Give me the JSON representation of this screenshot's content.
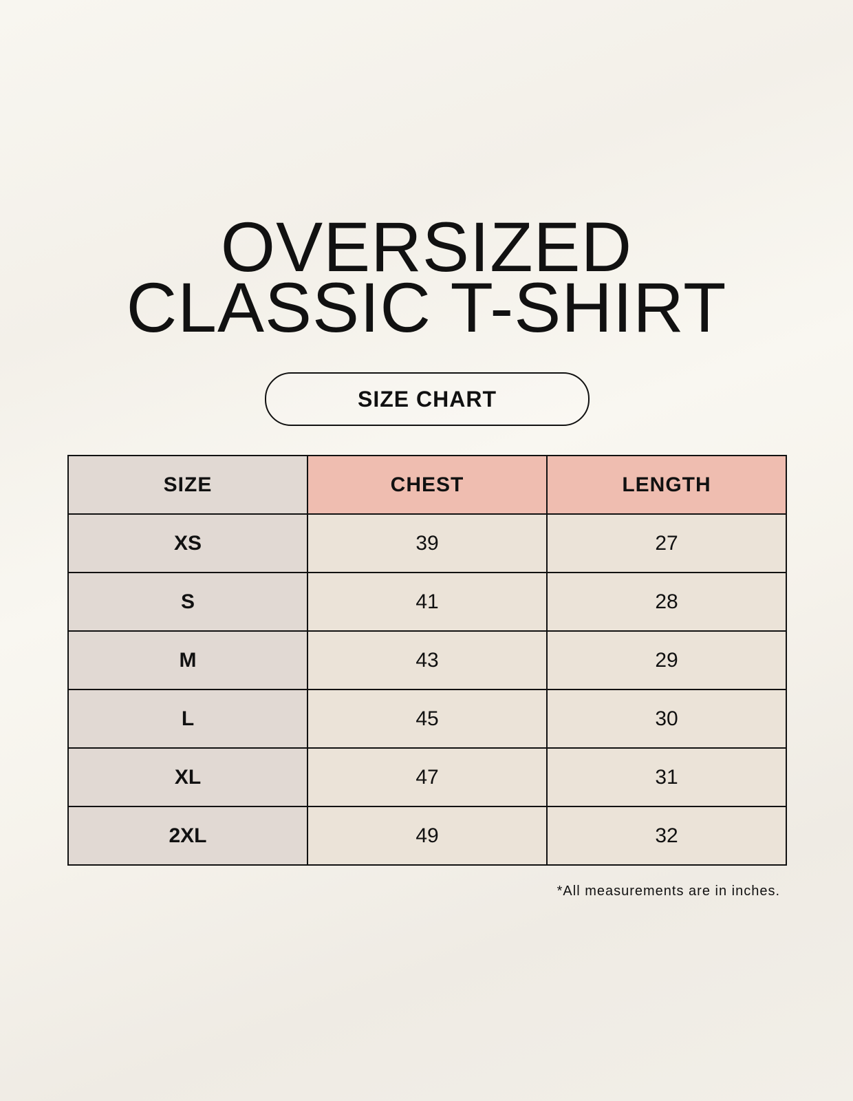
{
  "title": {
    "line1": "OVERSIZED",
    "line2": "CLASSIC T-SHIRT"
  },
  "badge": "SIZE CHART",
  "table": {
    "headers": [
      "SIZE",
      "CHEST",
      "LENGTH"
    ],
    "rows": [
      [
        "XS",
        "39",
        "27"
      ],
      [
        "S",
        "41",
        "28"
      ],
      [
        "M",
        "43",
        "29"
      ],
      [
        "L",
        "45",
        "30"
      ],
      [
        "XL",
        "47",
        "31"
      ],
      [
        "2XL",
        "49",
        "32"
      ]
    ]
  },
  "footnote": "*All measurements are in inches.",
  "colors": {
    "size_column": "#e1d9d3",
    "header_accent": "#efbdb0",
    "value_cells": "#ebe3d8"
  }
}
